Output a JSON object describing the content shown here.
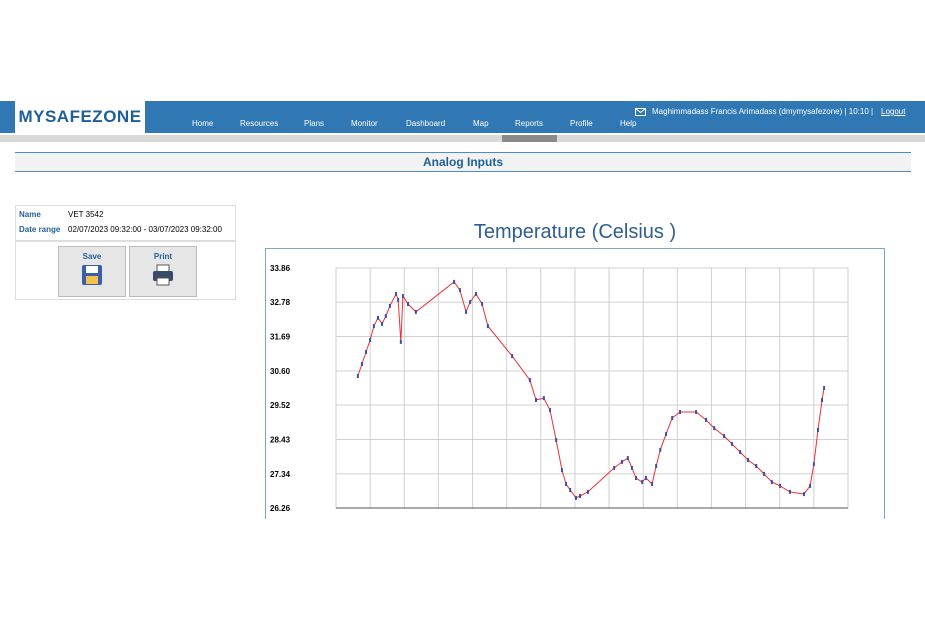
{
  "header": {
    "logo": "MYSAFEZONE",
    "nav": [
      "Home",
      "Resources",
      "Plans",
      "Monitor",
      "Dashboard",
      "Map",
      "Reports",
      "Profile",
      "Help"
    ],
    "user": "Maghimmadass Francis Arimadass (dmymysafezone) | 10:10 |",
    "logout": "Logout"
  },
  "page_title": "Analog Inputs",
  "info": {
    "name_label": "Name",
    "name": "VET 3542",
    "range_label": "Date range",
    "range": "02/07/2023 09:32:00 - 03/07/2023 09:32:00"
  },
  "buttons": [
    "Save",
    "Print"
  ],
  "chart_data": {
    "type": "line",
    "title": "Temperature (Celsius )",
    "x": [
      0.64,
      0.76,
      0.88,
      1.0,
      1.11,
      1.23,
      1.35,
      1.46,
      1.58,
      1.76,
      1.82,
      1.9,
      1.96,
      2.11,
      2.34,
      3.46,
      3.63,
      3.81,
      3.93,
      4.1,
      4.28,
      4.45,
      5.16,
      5.68,
      5.86,
      6.09,
      6.27,
      6.45,
      6.62,
      6.74,
      6.86,
      7.03,
      7.15,
      7.38,
      8.15,
      8.38,
      8.55,
      8.67,
      8.79,
      8.97,
      9.08,
      9.26,
      9.38,
      9.5,
      9.67,
      9.85,
      10.08,
      10.55,
      10.84,
      11.08,
      11.37,
      11.6,
      11.84,
      12.07,
      12.31,
      12.54,
      12.77,
      13.01,
      13.3,
      13.71,
      13.89,
      14.0,
      14.12,
      14.24,
      14.3
    ],
    "values": [
      30.44,
      30.82,
      31.2,
      31.58,
      32.02,
      32.28,
      32.09,
      32.34,
      32.66,
      33.04,
      32.85,
      31.52,
      32.97,
      32.72,
      32.47,
      33.42,
      33.16,
      32.47,
      32.78,
      33.04,
      32.72,
      32.02,
      31.07,
      30.31,
      29.68,
      29.74,
      29.36,
      28.41,
      27.46,
      27.02,
      26.83,
      26.58,
      26.64,
      26.77,
      27.53,
      27.72,
      27.84,
      27.53,
      27.21,
      27.08,
      27.21,
      27.02,
      27.59,
      28.1,
      28.6,
      29.11,
      29.3,
      29.3,
      29.05,
      28.79,
      28.54,
      28.29,
      28.03,
      27.78,
      27.59,
      27.34,
      27.08,
      26.96,
      26.77,
      26.7,
      26.96,
      27.65,
      28.73,
      29.68,
      30.06
    ],
    "color": "#e8313a",
    "marker_color": "#3a4fa8",
    "xlim": [
      0,
      15
    ],
    "ylim": [
      26.26,
      33.86
    ],
    "yticks": [
      26.26,
      27.34,
      28.43,
      29.52,
      {
        "value": 30.6,
        "label": "30.60"
      },
      31.69,
      32.78,
      33.86
    ],
    "grid": true
  }
}
